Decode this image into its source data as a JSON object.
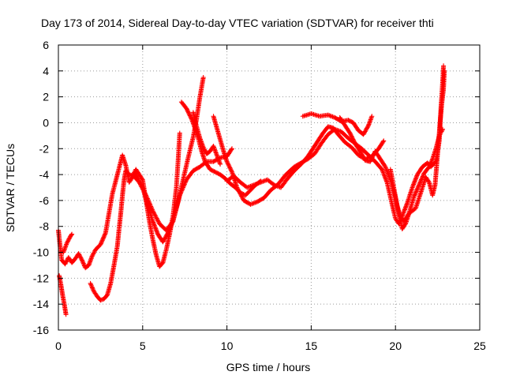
{
  "chart_data": {
    "type": "scatter",
    "title": "Day 173 of 2014, Sidereal Day-to-day VTEC variation (SDTVAR) for receiver thti",
    "xlabel": "GPS time / hours",
    "ylabel": "SDTVAR / TECUs",
    "xlim": [
      0,
      25
    ],
    "ylim": [
      -16,
      6
    ],
    "xticks": [
      0,
      5,
      10,
      15,
      20,
      25
    ],
    "yticks": [
      -16,
      -14,
      -12,
      -10,
      -8,
      -6,
      -4,
      -2,
      0,
      2,
      4,
      6
    ],
    "grid": true,
    "legend": "none",
    "marker": "plus",
    "color": "#ff0000",
    "series": [
      {
        "values": [
          [
            0.0,
            -8.3
          ],
          [
            0.1,
            -9.5
          ],
          [
            0.2,
            -10.6
          ],
          [
            0.4,
            -10.9
          ],
          [
            0.6,
            -10.4
          ],
          [
            0.8,
            -10.8
          ],
          [
            1.0,
            -10.5
          ],
          [
            1.2,
            -10.1
          ],
          [
            1.4,
            -10.6
          ],
          [
            1.6,
            -11.2
          ],
          [
            1.8,
            -11.0
          ],
          [
            2.0,
            -10.3
          ],
          [
            2.2,
            -9.8
          ],
          [
            2.5,
            -9.4
          ],
          [
            2.8,
            -8.5
          ],
          [
            3.0,
            -7.0
          ],
          [
            3.2,
            -5.5
          ],
          [
            3.4,
            -4.5
          ],
          [
            3.6,
            -3.5
          ],
          [
            3.8,
            -2.5
          ],
          [
            4.0,
            -3.3
          ],
          [
            4.2,
            -4.6
          ],
          [
            4.4,
            -4.2
          ],
          [
            4.6,
            -3.9
          ],
          [
            4.8,
            -4.5
          ],
          [
            5.0,
            -5.0
          ],
          [
            5.3,
            -6.4
          ],
          [
            5.6,
            -7.6
          ],
          [
            5.9,
            -8.6
          ],
          [
            6.2,
            -9.2
          ],
          [
            6.5,
            -8.5
          ],
          [
            6.8,
            -7.6
          ],
          [
            7.1,
            -6.1
          ],
          [
            7.4,
            -4.4
          ],
          [
            7.7,
            -2.7
          ],
          [
            8.0,
            -1.1
          ],
          [
            8.2,
            0.3
          ],
          [
            8.4,
            2.0
          ],
          [
            8.6,
            3.5
          ]
        ]
      },
      {
        "values": [
          [
            0.05,
            -11.8
          ],
          [
            0.15,
            -12.5
          ],
          [
            0.25,
            -13.3
          ],
          [
            0.35,
            -14.0
          ],
          [
            0.45,
            -14.8
          ]
        ]
      },
      {
        "values": [
          [
            0.3,
            -10.0
          ],
          [
            0.5,
            -9.3
          ],
          [
            0.7,
            -8.8
          ],
          [
            0.8,
            -8.6
          ]
        ]
      },
      {
        "values": [
          [
            1.9,
            -12.4
          ],
          [
            2.1,
            -13.0
          ],
          [
            2.3,
            -13.4
          ],
          [
            2.5,
            -13.7
          ],
          [
            2.7,
            -13.6
          ],
          [
            2.9,
            -13.3
          ],
          [
            3.1,
            -12.4
          ],
          [
            3.3,
            -11.0
          ],
          [
            3.5,
            -9.5
          ],
          [
            3.6,
            -8.2
          ],
          [
            3.7,
            -7.0
          ],
          [
            3.8,
            -5.6
          ],
          [
            3.9,
            -4.4
          ],
          [
            4.0,
            -3.7
          ],
          [
            4.2,
            -4.0
          ],
          [
            4.4,
            -4.1
          ],
          [
            4.6,
            -3.6
          ],
          [
            4.8,
            -4.0
          ],
          [
            5.0,
            -4.4
          ],
          [
            5.2,
            -6.0
          ],
          [
            5.4,
            -7.6
          ],
          [
            5.6,
            -9.0
          ],
          [
            5.8,
            -10.2
          ],
          [
            6.0,
            -11.1
          ],
          [
            6.2,
            -10.8
          ],
          [
            6.4,
            -9.8
          ],
          [
            6.6,
            -8.6
          ],
          [
            6.8,
            -7.2
          ],
          [
            7.0,
            -5.0
          ],
          [
            7.1,
            -3.0
          ],
          [
            7.2,
            -0.8
          ]
        ]
      },
      {
        "values": [
          [
            4.4,
            -4.0
          ],
          [
            4.8,
            -4.6
          ],
          [
            5.2,
            -5.6
          ],
          [
            5.6,
            -6.8
          ],
          [
            6.0,
            -7.8
          ],
          [
            6.4,
            -8.3
          ],
          [
            6.8,
            -7.6
          ],
          [
            7.2,
            -5.6
          ],
          [
            7.6,
            -4.4
          ],
          [
            8.0,
            -3.7
          ],
          [
            8.4,
            -3.4
          ],
          [
            8.8,
            -3.0
          ],
          [
            9.2,
            -3.0
          ],
          [
            9.6,
            -2.7
          ],
          [
            10.0,
            -2.6
          ],
          [
            10.3,
            -2.0
          ]
        ]
      },
      {
        "values": [
          [
            7.3,
            1.6
          ],
          [
            7.6,
            1.1
          ],
          [
            7.9,
            0.3
          ],
          [
            8.1,
            -0.4
          ],
          [
            8.3,
            -1.2
          ],
          [
            8.5,
            -2.2
          ],
          [
            8.7,
            -3.0
          ],
          [
            9.0,
            -3.6
          ],
          [
            9.3,
            -3.8
          ],
          [
            9.6,
            -4.0
          ],
          [
            9.9,
            -4.3
          ],
          [
            10.2,
            -4.7
          ],
          [
            10.5,
            -5.0
          ],
          [
            10.8,
            -5.4
          ],
          [
            11.1,
            -5.6
          ],
          [
            11.4,
            -5.2
          ],
          [
            11.7,
            -4.8
          ],
          [
            12.0,
            -4.5
          ]
        ]
      },
      {
        "values": [
          [
            8.0,
            0.8
          ],
          [
            8.2,
            -0.3
          ],
          [
            8.4,
            -1.2
          ],
          [
            8.6,
            -1.9
          ],
          [
            8.8,
            -2.4
          ],
          [
            9.0,
            -2.2
          ],
          [
            9.2,
            -1.8
          ],
          [
            9.4,
            -2.5
          ],
          [
            9.6,
            -3.2
          ]
        ]
      },
      {
        "values": [
          [
            9.2,
            0.5
          ],
          [
            9.4,
            -0.4
          ],
          [
            9.6,
            -1.3
          ],
          [
            9.8,
            -2.2
          ],
          [
            10.0,
            -3.0
          ],
          [
            10.3,
            -3.8
          ],
          [
            10.6,
            -5.0
          ],
          [
            11.0,
            -6.0
          ],
          [
            11.4,
            -6.3
          ],
          [
            11.8,
            -6.1
          ],
          [
            12.2,
            -5.8
          ],
          [
            12.6,
            -5.2
          ],
          [
            13.0,
            -4.8
          ],
          [
            13.5,
            -4.0
          ],
          [
            14.0,
            -3.4
          ],
          [
            14.4,
            -3.1
          ],
          [
            14.8,
            -2.8
          ],
          [
            15.2,
            -2.4
          ],
          [
            15.6,
            -1.6
          ],
          [
            16.0,
            -0.9
          ],
          [
            16.4,
            -0.5
          ],
          [
            16.8,
            -0.7
          ],
          [
            17.2,
            -1.2
          ],
          [
            17.6,
            -1.6
          ],
          [
            18.0,
            -2.0
          ],
          [
            18.4,
            -2.5
          ],
          [
            18.8,
            -3.0
          ],
          [
            19.2,
            -3.6
          ],
          [
            19.5,
            -4.6
          ],
          [
            19.8,
            -6.3
          ],
          [
            20.0,
            -7.4
          ],
          [
            20.2,
            -7.8
          ],
          [
            20.4,
            -7.2
          ],
          [
            20.7,
            -6.2
          ],
          [
            21.0,
            -5.0
          ],
          [
            21.3,
            -4.0
          ],
          [
            21.6,
            -3.4
          ],
          [
            21.9,
            -3.1
          ],
          [
            22.1,
            -3.4
          ],
          [
            22.4,
            -3.0
          ],
          [
            22.6,
            -1.4
          ],
          [
            22.7,
            1.2
          ],
          [
            22.8,
            3.2
          ],
          [
            22.85,
            4.4
          ]
        ]
      },
      {
        "values": [
          [
            10.0,
            -4.5
          ],
          [
            10.4,
            -4.1
          ],
          [
            10.8,
            -4.6
          ],
          [
            11.2,
            -5.0
          ],
          [
            11.6,
            -4.8
          ],
          [
            12.0,
            -4.6
          ],
          [
            12.4,
            -4.4
          ],
          [
            12.8,
            -4.8
          ],
          [
            13.2,
            -5.0
          ],
          [
            13.6,
            -4.3
          ],
          [
            14.0,
            -3.7
          ],
          [
            14.4,
            -3.2
          ],
          [
            14.8,
            -2.6
          ],
          [
            15.1,
            -2.0
          ],
          [
            15.4,
            -1.4
          ],
          [
            15.7,
            -0.8
          ],
          [
            16.0,
            -0.3
          ],
          [
            16.3,
            -0.4
          ],
          [
            16.6,
            -0.9
          ],
          [
            17.0,
            -1.5
          ],
          [
            17.4,
            -1.9
          ],
          [
            17.8,
            -2.5
          ],
          [
            18.2,
            -2.8
          ],
          [
            18.6,
            -2.6
          ],
          [
            19.0,
            -2.0
          ],
          [
            19.3,
            -1.4
          ]
        ]
      },
      {
        "values": [
          [
            14.5,
            0.5
          ],
          [
            15.0,
            0.7
          ],
          [
            15.5,
            0.5
          ],
          [
            16.0,
            0.6
          ],
          [
            16.4,
            0.4
          ],
          [
            16.8,
            0.1
          ],
          [
            17.2,
            0.2
          ],
          [
            17.5,
            0.0
          ],
          [
            17.8,
            -0.6
          ],
          [
            18.1,
            -0.9
          ],
          [
            18.4,
            -0.2
          ],
          [
            18.6,
            0.5
          ]
        ]
      },
      {
        "values": [
          [
            16.7,
            0.4
          ],
          [
            17.0,
            -0.2
          ],
          [
            17.3,
            -0.8
          ],
          [
            17.6,
            -1.6
          ],
          [
            17.9,
            -2.2
          ],
          [
            18.2,
            -2.9
          ],
          [
            18.5,
            -3.0
          ],
          [
            18.8,
            -2.2
          ],
          [
            19.1,
            -2.8
          ],
          [
            19.4,
            -3.4
          ],
          [
            19.7,
            -4.4
          ],
          [
            20.0,
            -5.8
          ],
          [
            20.2,
            -7.0
          ],
          [
            20.4,
            -8.2
          ],
          [
            20.6,
            -7.8
          ],
          [
            20.8,
            -7.0
          ],
          [
            21.1,
            -5.7
          ],
          [
            21.4,
            -4.8
          ],
          [
            21.7,
            -3.9
          ],
          [
            22.0,
            -3.4
          ],
          [
            22.2,
            -2.8
          ],
          [
            22.4,
            -2.0
          ],
          [
            22.6,
            -1.0
          ],
          [
            22.8,
            -0.5
          ]
        ]
      },
      {
        "values": [
          [
            19.7,
            -3.6
          ],
          [
            19.9,
            -5.0
          ],
          [
            20.1,
            -6.4
          ],
          [
            20.3,
            -7.3
          ],
          [
            20.5,
            -7.6
          ],
          [
            20.8,
            -7.0
          ],
          [
            21.2,
            -6.6
          ],
          [
            21.5,
            -5.4
          ],
          [
            21.8,
            -4.2
          ],
          [
            22.0,
            -4.6
          ],
          [
            22.2,
            -5.6
          ],
          [
            22.35,
            -4.8
          ],
          [
            22.45,
            -3.2
          ],
          [
            22.55,
            -1.6
          ],
          [
            22.65,
            0.1
          ],
          [
            22.75,
            1.5
          ],
          [
            22.85,
            2.6
          ],
          [
            22.9,
            4.0
          ]
        ]
      }
    ]
  }
}
